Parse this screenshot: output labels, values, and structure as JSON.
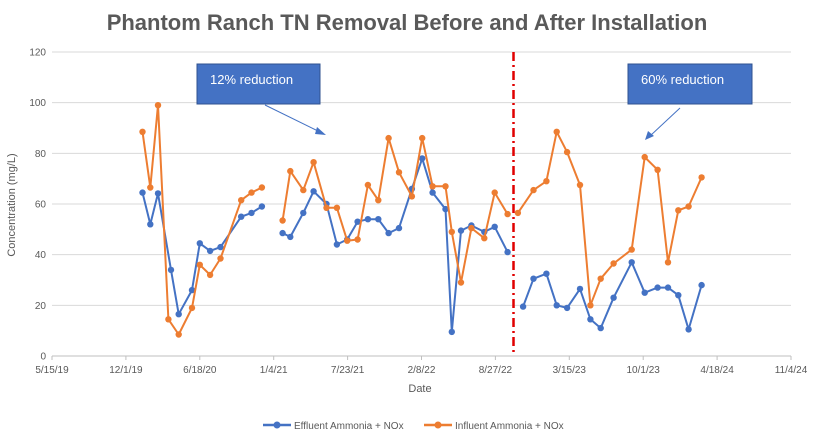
{
  "chart_data": {
    "type": "line",
    "title": "Phantom Ranch TN Removal Before and After Installation",
    "xlabel": "Date",
    "ylabel": "Concentration (mg/L)",
    "ylim": [
      0,
      120
    ],
    "yticks": [
      0,
      20,
      40,
      60,
      80,
      100,
      120
    ],
    "xlim": [
      "2019-05-15",
      "2024-11-04"
    ],
    "xtick_labels": [
      "5/15/19",
      "12/1/19",
      "6/18/20",
      "1/4/21",
      "7/23/21",
      "2/8/22",
      "8/27/22",
      "3/15/23",
      "10/1/23",
      "4/18/24",
      "11/4/24"
    ],
    "xtick_dates": [
      "2019-05-15",
      "2019-12-01",
      "2020-06-18",
      "2021-01-04",
      "2021-07-23",
      "2022-02-08",
      "2022-08-27",
      "2023-03-15",
      "2023-10-01",
      "2024-04-18",
      "2024-11-04"
    ],
    "grid": "horizontal",
    "legend_position": "bottom",
    "installation_date": "2022-10-15",
    "series": [
      {
        "name": "Effluent Ammonia + NOx",
        "color": "#4472C4",
        "segments": [
          [
            [
              "2020-01-15",
              64.5
            ],
            [
              "2020-02-05",
              52
            ],
            [
              "2020-02-26",
              64.2
            ],
            [
              "2020-04-01",
              34
            ],
            [
              "2020-04-22",
              16.5
            ],
            [
              "2020-05-28",
              26
            ],
            [
              "2020-06-18",
              44.5
            ],
            [
              "2020-07-16",
              41.5
            ],
            [
              "2020-08-13",
              43
            ],
            [
              "2020-10-08",
              55
            ],
            [
              "2020-11-05",
              56.5
            ],
            [
              "2020-12-03",
              59
            ]
          ],
          [
            [
              "2021-01-28",
              48.5
            ],
            [
              "2021-02-18",
              47
            ],
            [
              "2021-03-25",
              56.5
            ],
            [
              "2021-04-22",
              65
            ],
            [
              "2021-05-27",
              60
            ],
            [
              "2021-06-24",
              44
            ],
            [
              "2021-07-22",
              46
            ],
            [
              "2021-08-19",
              53
            ],
            [
              "2021-09-16",
              54
            ],
            [
              "2021-10-14",
              54
            ],
            [
              "2021-11-11",
              48.5
            ],
            [
              "2021-12-09",
              50.5
            ],
            [
              "2022-01-13",
              66
            ],
            [
              "2022-02-10",
              78
            ],
            [
              "2022-03-10",
              64.5
            ],
            [
              "2022-04-14",
              58
            ],
            [
              "2022-05-01",
              9.5
            ],
            [
              "2022-05-26",
              49.5
            ],
            [
              "2022-06-23",
              51.5
            ],
            [
              "2022-07-28",
              49
            ],
            [
              "2022-08-25",
              51
            ],
            [
              "2022-09-29",
              41
            ]
          ],
          [
            [
              "2022-11-10",
              19.5
            ],
            [
              "2022-12-08",
              30.5
            ],
            [
              "2023-01-12",
              32.5
            ],
            [
              "2023-02-09",
              20
            ],
            [
              "2023-03-09",
              19
            ],
            [
              "2023-04-13",
              26.5
            ],
            [
              "2023-05-11",
              14.5
            ],
            [
              "2023-06-08",
              11
            ],
            [
              "2023-07-13",
              23
            ],
            [
              "2023-08-31",
              37
            ],
            [
              "2023-10-05",
              25
            ],
            [
              "2023-11-09",
              27
            ],
            [
              "2023-12-07",
              27
            ],
            [
              "2024-01-04",
              24
            ],
            [
              "2024-02-01",
              10.5
            ],
            [
              "2024-03-07",
              28
            ]
          ]
        ]
      },
      {
        "name": "Influent Ammonia + NOx",
        "color": "#ED7D31",
        "segments": [
          [
            [
              "2020-01-15",
              88.5
            ],
            [
              "2020-02-05",
              66.5
            ],
            [
              "2020-02-26",
              99
            ],
            [
              "2020-03-25",
              14.5
            ],
            [
              "2020-04-22",
              8.5
            ],
            [
              "2020-05-28",
              19
            ],
            [
              "2020-06-18",
              36
            ],
            [
              "2020-07-16",
              32
            ],
            [
              "2020-08-13",
              38.5
            ],
            [
              "2020-10-08",
              61.5
            ],
            [
              "2020-11-05",
              64.5
            ],
            [
              "2020-12-03",
              66.5
            ]
          ],
          [
            [
              "2021-01-28",
              53.5
            ],
            [
              "2021-02-18",
              73
            ],
            [
              "2021-03-25",
              65.5
            ],
            [
              "2021-04-22",
              76.5
            ],
            [
              "2021-05-27",
              58.5
            ],
            [
              "2021-06-24",
              58.5
            ],
            [
              "2021-07-22",
              45.5
            ],
            [
              "2021-08-19",
              46
            ],
            [
              "2021-09-16",
              67.5
            ],
            [
              "2021-10-14",
              61.5
            ],
            [
              "2021-11-11",
              86
            ],
            [
              "2021-12-09",
              72.5
            ],
            [
              "2022-01-13",
              63
            ],
            [
              "2022-02-10",
              86
            ],
            [
              "2022-03-10",
              67
            ],
            [
              "2022-04-14",
              67
            ],
            [
              "2022-05-01",
              49
            ],
            [
              "2022-05-26",
              29
            ],
            [
              "2022-06-23",
              50.5
            ],
            [
              "2022-07-28",
              46.5
            ],
            [
              "2022-08-25",
              64.5
            ],
            [
              "2022-09-29",
              56
            ]
          ],
          [
            [
              "2022-10-27",
              56.5
            ],
            [
              "2022-12-08",
              65.5
            ],
            [
              "2023-01-12",
              69
            ],
            [
              "2023-02-09",
              88.5
            ],
            [
              "2023-03-09",
              80.5
            ],
            [
              "2023-04-13",
              67.5
            ],
            [
              "2023-05-11",
              20
            ],
            [
              "2023-06-08",
              30.5
            ],
            [
              "2023-07-13",
              36.5
            ],
            [
              "2023-08-31",
              42
            ],
            [
              "2023-10-05",
              78.5
            ],
            [
              "2023-11-09",
              73.5
            ],
            [
              "2023-12-07",
              37
            ],
            [
              "2024-01-04",
              57.5
            ],
            [
              "2024-02-01",
              59
            ],
            [
              "2024-03-07",
              70.5
            ]
          ]
        ]
      }
    ],
    "annotations": [
      {
        "text": "12% reduction",
        "box_color": "#4472C4"
      },
      {
        "text": "60% reduction",
        "box_color": "#4472C4"
      }
    ]
  }
}
